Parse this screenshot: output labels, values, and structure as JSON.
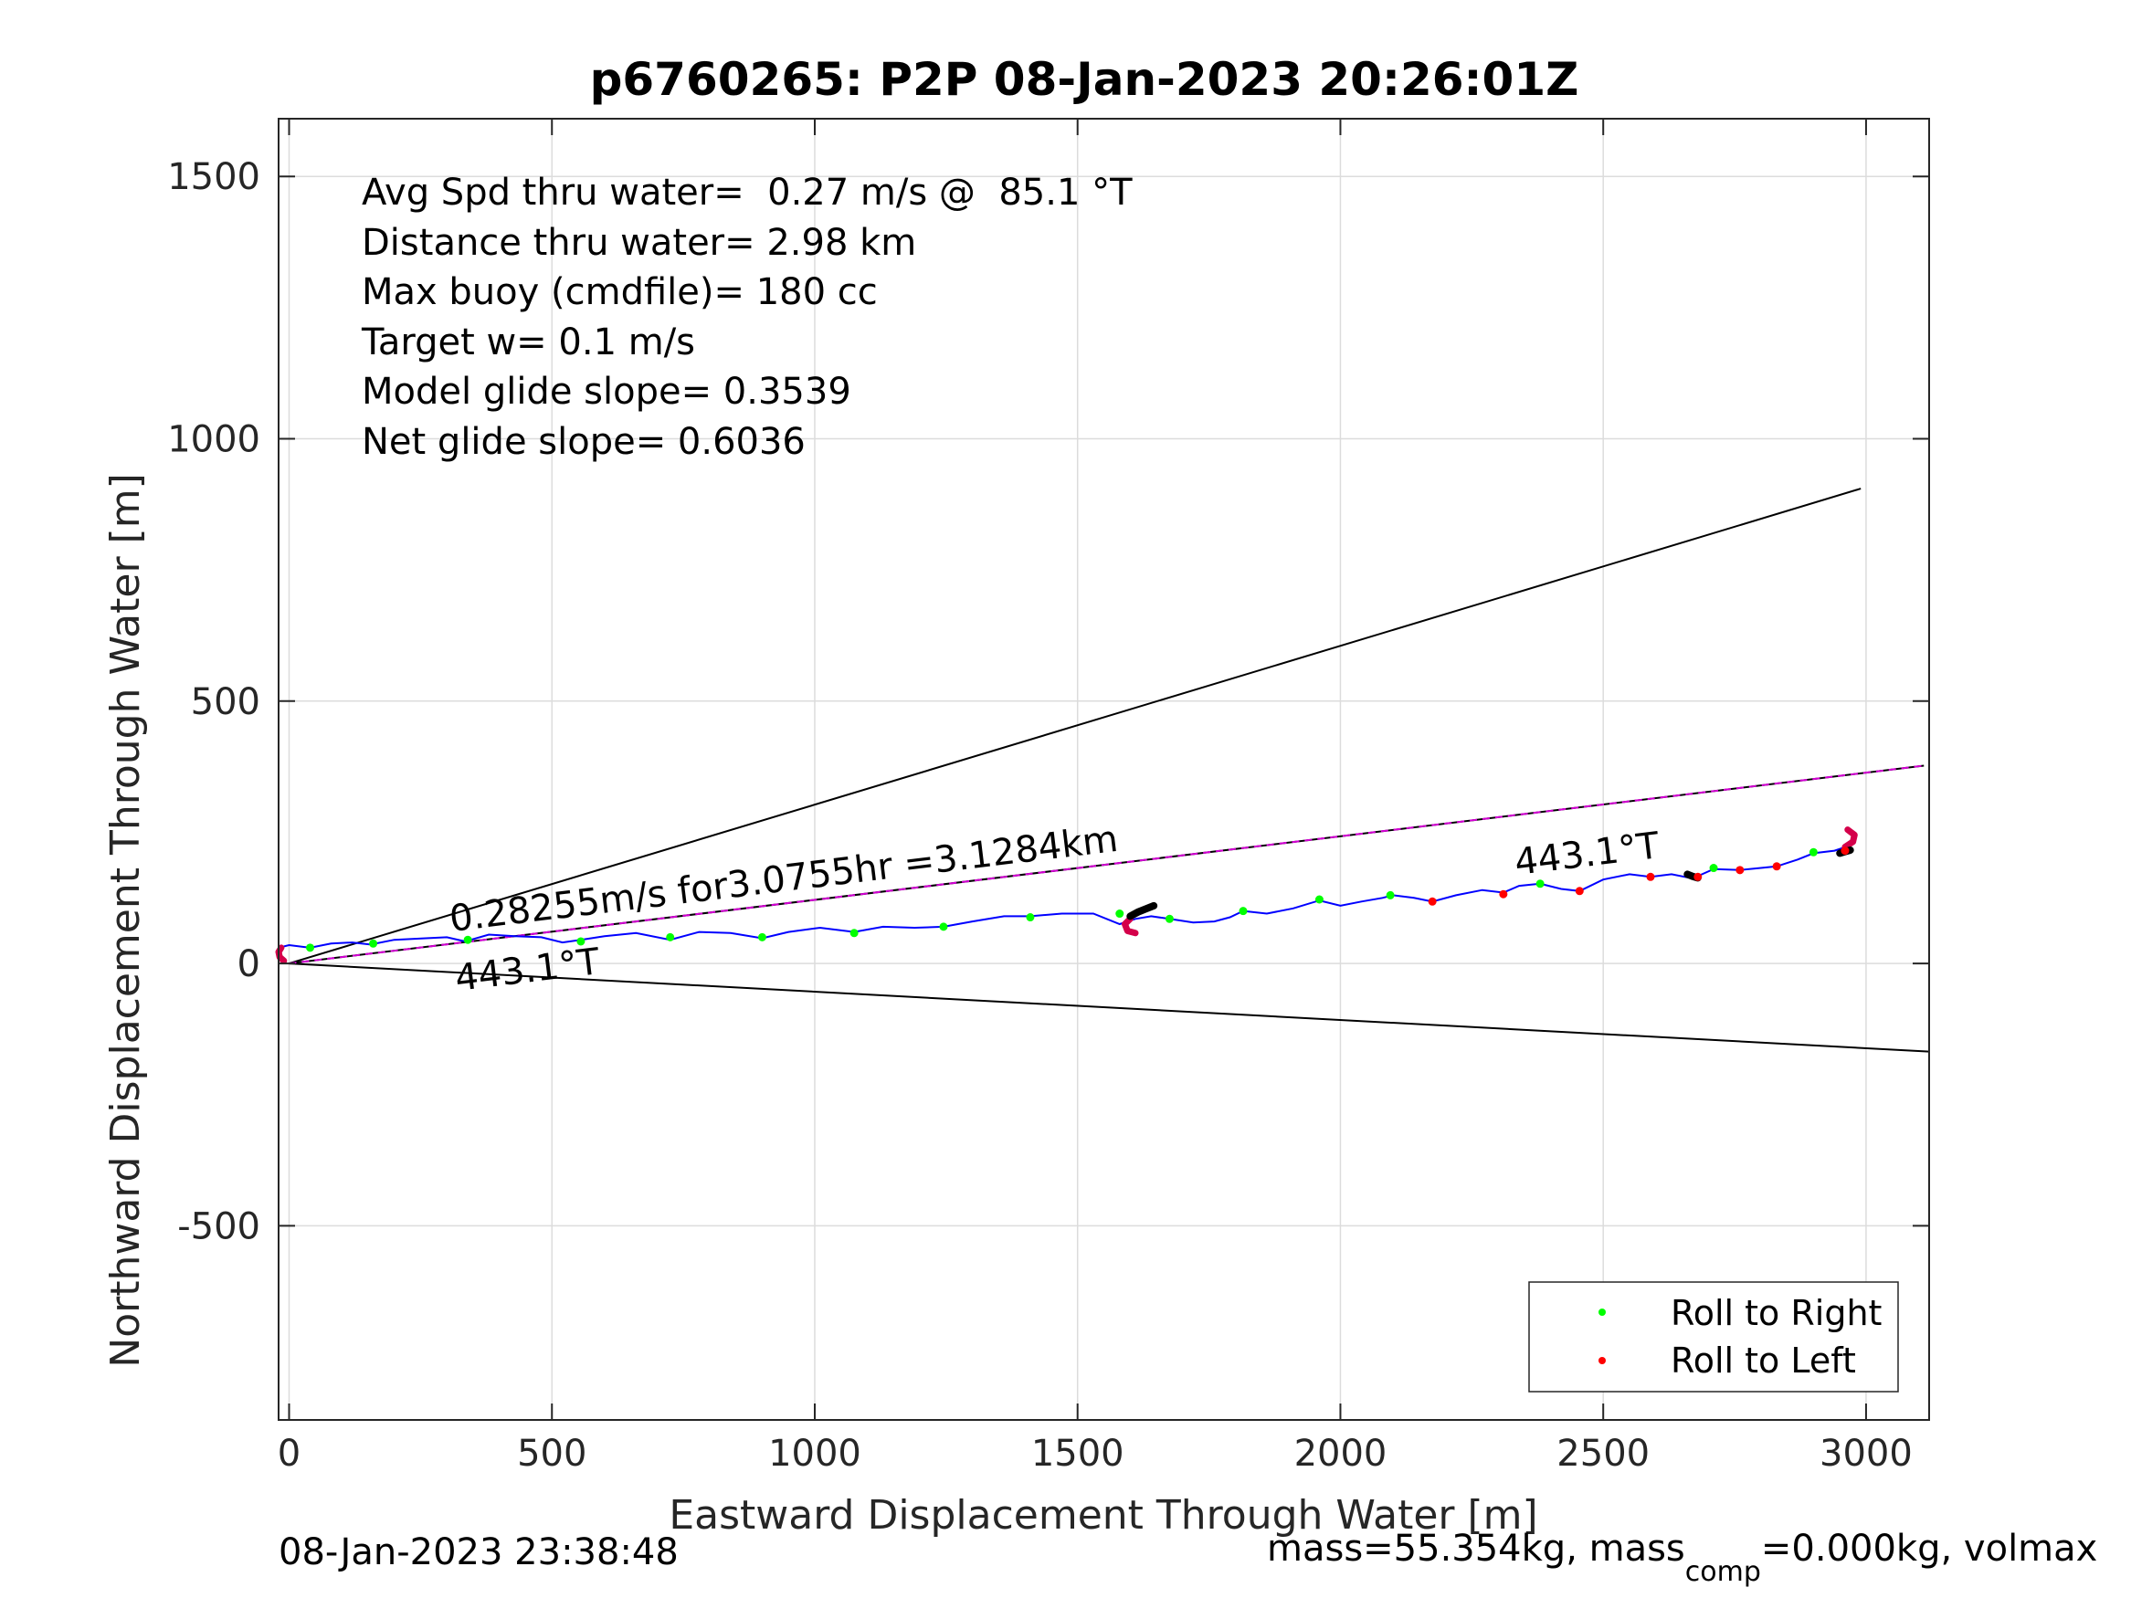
{
  "chart_data": {
    "type": "scatter",
    "title": "p6760265: P2P 08-Jan-2023 20:26:01Z",
    "xlabel": "Eastward Displacement Through Water [m]",
    "ylabel": "Northward Displacement Through Water [m]",
    "xlim": [
      -20,
      3120
    ],
    "ylim": [
      -870,
      1610
    ],
    "xticks": [
      0,
      500,
      1000,
      1500,
      2000,
      2500,
      3000
    ],
    "yticks": [
      -500,
      0,
      500,
      1000,
      1500
    ],
    "xtick_labels": [
      "0",
      "500",
      "1000",
      "1500",
      "2000",
      "2500",
      "3000"
    ],
    "ytick_labels": [
      "-500",
      "0",
      "500",
      "1000",
      "1500"
    ],
    "grid": true,
    "legend_position": "bottom-right",
    "info_lines": [
      "Avg Spd thru water=  0.27 m/s @  85.1 °T",
      "Distance thru water=  2.98 km",
      "Max buoy (cmdfile)= 180 cc",
      "Target w= 0.1 m/s",
      "Model glide slope= 0.3539",
      "Net glide slope= 0.6036"
    ],
    "annotations": {
      "speed_text": "0.28255m/s for3.0755hr =3.1284km",
      "heading_start": "443.1°T",
      "heading_end": "443.1°T"
    },
    "reference_lines": [
      {
        "name": "upper-bound",
        "color": "#000000",
        "x": [
          0,
          2990
        ],
        "y": [
          0,
          905
        ]
      },
      {
        "name": "lower-bound",
        "color": "#000000",
        "x": [
          0,
          3120
        ],
        "y": [
          0,
          -168
        ]
      },
      {
        "name": "course-line",
        "color": "#000000",
        "x": [
          0,
          3110
        ],
        "y": [
          0,
          377
        ]
      },
      {
        "name": "course-line-dashed",
        "color": "#d400d4",
        "x": [
          0,
          3110
        ],
        "y": [
          0,
          377
        ]
      }
    ],
    "track": {
      "color": "#0000ff",
      "x": [
        -20,
        0,
        40,
        80,
        120,
        155,
        200,
        260,
        300,
        335,
        380,
        430,
        480,
        520,
        555,
        600,
        660,
        725,
        780,
        840,
        900,
        950,
        1010,
        1075,
        1130,
        1190,
        1245,
        1300,
        1360,
        1410,
        1470,
        1530,
        1580,
        1610,
        1640,
        1675,
        1720,
        1760,
        1790,
        1815,
        1860,
        1910,
        1960,
        2000,
        2040,
        2080,
        2100,
        2140,
        2175,
        2220,
        2270,
        2310,
        2340,
        2380,
        2420,
        2455,
        2500,
        2550,
        2590,
        2630,
        2670,
        2710,
        2760,
        2800,
        2830,
        2870,
        2900,
        2940,
        2970
      ],
      "y": [
        30,
        35,
        30,
        38,
        40,
        36,
        45,
        48,
        50,
        42,
        55,
        52,
        50,
        40,
        45,
        52,
        58,
        45,
        60,
        58,
        48,
        60,
        68,
        60,
        70,
        68,
        70,
        80,
        90,
        90,
        95,
        95,
        75,
        85,
        90,
        85,
        78,
        80,
        88,
        100,
        95,
        105,
        120,
        110,
        118,
        125,
        130,
        125,
        118,
        130,
        140,
        135,
        148,
        152,
        142,
        138,
        160,
        170,
        165,
        170,
        162,
        180,
        178,
        182,
        185,
        198,
        210,
        215,
        225
      ]
    },
    "black_segments": [
      {
        "x": [
          1600,
          1615,
          1630,
          1645
        ],
        "y": [
          90,
          98,
          104,
          110
        ]
      },
      {
        "x": [
          2660,
          2670,
          2680
        ],
        "y": [
          170,
          166,
          163
        ]
      },
      {
        "x": [
          2950,
          2960,
          2970
        ],
        "y": [
          210,
          213,
          216
        ]
      }
    ],
    "red_arcs": [
      {
        "x": [
          -15,
          -20,
          -18,
          -10
        ],
        "y": [
          30,
          22,
          12,
          5
        ]
      },
      {
        "x": [
          1600,
          1590,
          1595,
          1610
        ],
        "y": [
          85,
          75,
          62,
          58
        ]
      },
      {
        "x": [
          2965,
          2978,
          2975,
          2960
        ],
        "y": [
          255,
          245,
          232,
          222
        ]
      }
    ],
    "series": [
      {
        "name": "Roll to Right",
        "color": "#00ff00",
        "x": [
          40,
          160,
          340,
          555,
          725,
          900,
          1075,
          1245,
          1410,
          1580,
          1675,
          1815,
          1960,
          2095,
          2380,
          2710,
          2900
        ],
        "y": [
          30,
          38,
          45,
          42,
          50,
          50,
          58,
          70,
          88,
          95,
          85,
          100,
          122,
          130,
          152,
          182,
          212
        ]
      },
      {
        "name": "Roll to Left",
        "color": "#ff0000",
        "x": [
          2175,
          2310,
          2455,
          2590,
          2680,
          2760,
          2830,
          2960
        ],
        "y": [
          118,
          132,
          138,
          165,
          165,
          178,
          185,
          215
        ]
      }
    ]
  },
  "footer": {
    "timestamp": "08-Jan-2023 23:38:48",
    "mass_prefix": "mass=55.354kg, mass",
    "mass_sub": "comp",
    "mass_suffix": "=0.000kg, volmax"
  }
}
